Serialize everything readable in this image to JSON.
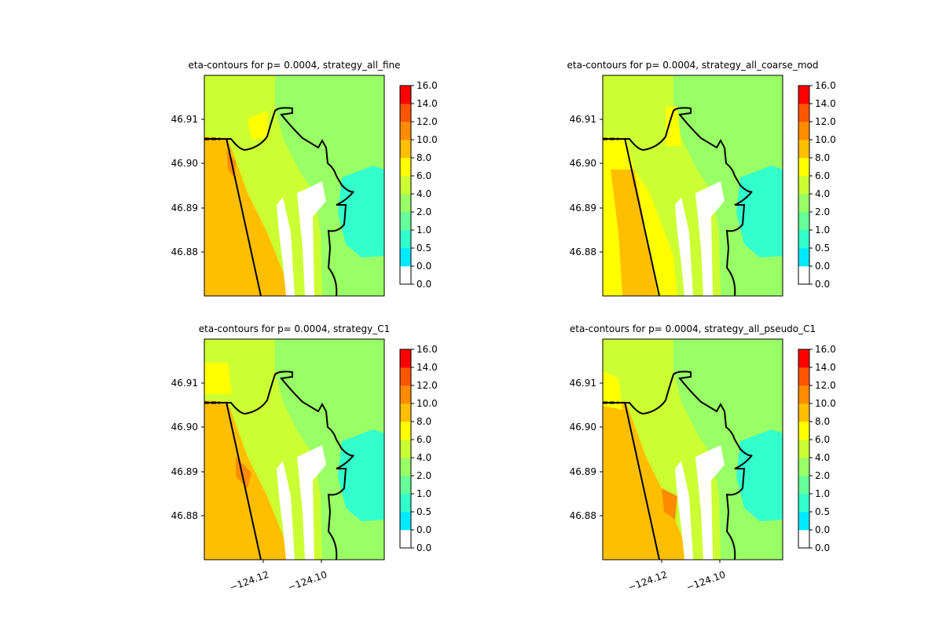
{
  "chart_data": [
    {
      "type": "heatmap",
      "title": "eta-contours for p= 0.0004, strategy_all_fine",
      "y_ticks": [
        "46.91",
        "46.90",
        "46.89",
        "46.88"
      ],
      "x_ticks": [],
      "colorbar": {
        "levels": [
          "0.0",
          "0.0",
          "0.5",
          "1.0",
          "2.0",
          "4.0",
          "6.0",
          "8.0",
          "10.0",
          "12.0",
          "14.0",
          "16.0"
        ],
        "colors": [
          "#ffffff",
          "#00eaff",
          "#33ffcc",
          "#66ff99",
          "#99ff66",
          "#ccff33",
          "#ffff00",
          "#ffbf00",
          "#ff8c00",
          "#ff5500",
          "#ff0000"
        ]
      }
    },
    {
      "type": "heatmap",
      "title": "eta-contours for p= 0.0004, strategy_all_coarse_mod",
      "y_ticks": [
        "46.91",
        "46.90",
        "46.89",
        "46.88"
      ],
      "x_ticks": [],
      "colorbar": {
        "levels": [
          "0.0",
          "0.0",
          "0.5",
          "1.0",
          "2.0",
          "4.0",
          "6.0",
          "8.0",
          "10.0",
          "12.0",
          "14.0",
          "16.0"
        ],
        "colors": [
          "#ffffff",
          "#00eaff",
          "#33ffcc",
          "#66ff99",
          "#99ff66",
          "#ccff33",
          "#ffff00",
          "#ffbf00",
          "#ff8c00",
          "#ff5500",
          "#ff0000"
        ]
      }
    },
    {
      "type": "heatmap",
      "title": "eta-contours for p= 0.0004, strategy_C1",
      "y_ticks": [
        "46.91",
        "46.90",
        "46.89",
        "46.88"
      ],
      "x_ticks": [
        "−124.12",
        "−124.10"
      ],
      "colorbar": {
        "levels": [
          "0.0",
          "0.0",
          "0.5",
          "1.0",
          "2.0",
          "4.0",
          "6.0",
          "8.0",
          "10.0",
          "12.0",
          "14.0",
          "16.0"
        ],
        "colors": [
          "#ffffff",
          "#00eaff",
          "#33ffcc",
          "#66ff99",
          "#99ff66",
          "#ccff33",
          "#ffff00",
          "#ffbf00",
          "#ff8c00",
          "#ff5500",
          "#ff0000"
        ]
      }
    },
    {
      "type": "heatmap",
      "title": "eta-contours for p= 0.0004, strategy_all_pseudo_C1",
      "y_ticks": [
        "46.91",
        "46.90",
        "46.89",
        "46.88"
      ],
      "x_ticks": [
        "−124.12",
        "−124.10"
      ],
      "colorbar": {
        "levels": [
          "0.0",
          "0.0",
          "0.5",
          "1.0",
          "2.0",
          "4.0",
          "6.0",
          "8.0",
          "10.0",
          "12.0",
          "14.0",
          "16.0"
        ],
        "colors": [
          "#ffffff",
          "#00eaff",
          "#33ffcc",
          "#66ff99",
          "#99ff66",
          "#ccff33",
          "#ffff00",
          "#ffbf00",
          "#ff8c00",
          "#ff5500",
          "#ff0000"
        ]
      }
    }
  ]
}
